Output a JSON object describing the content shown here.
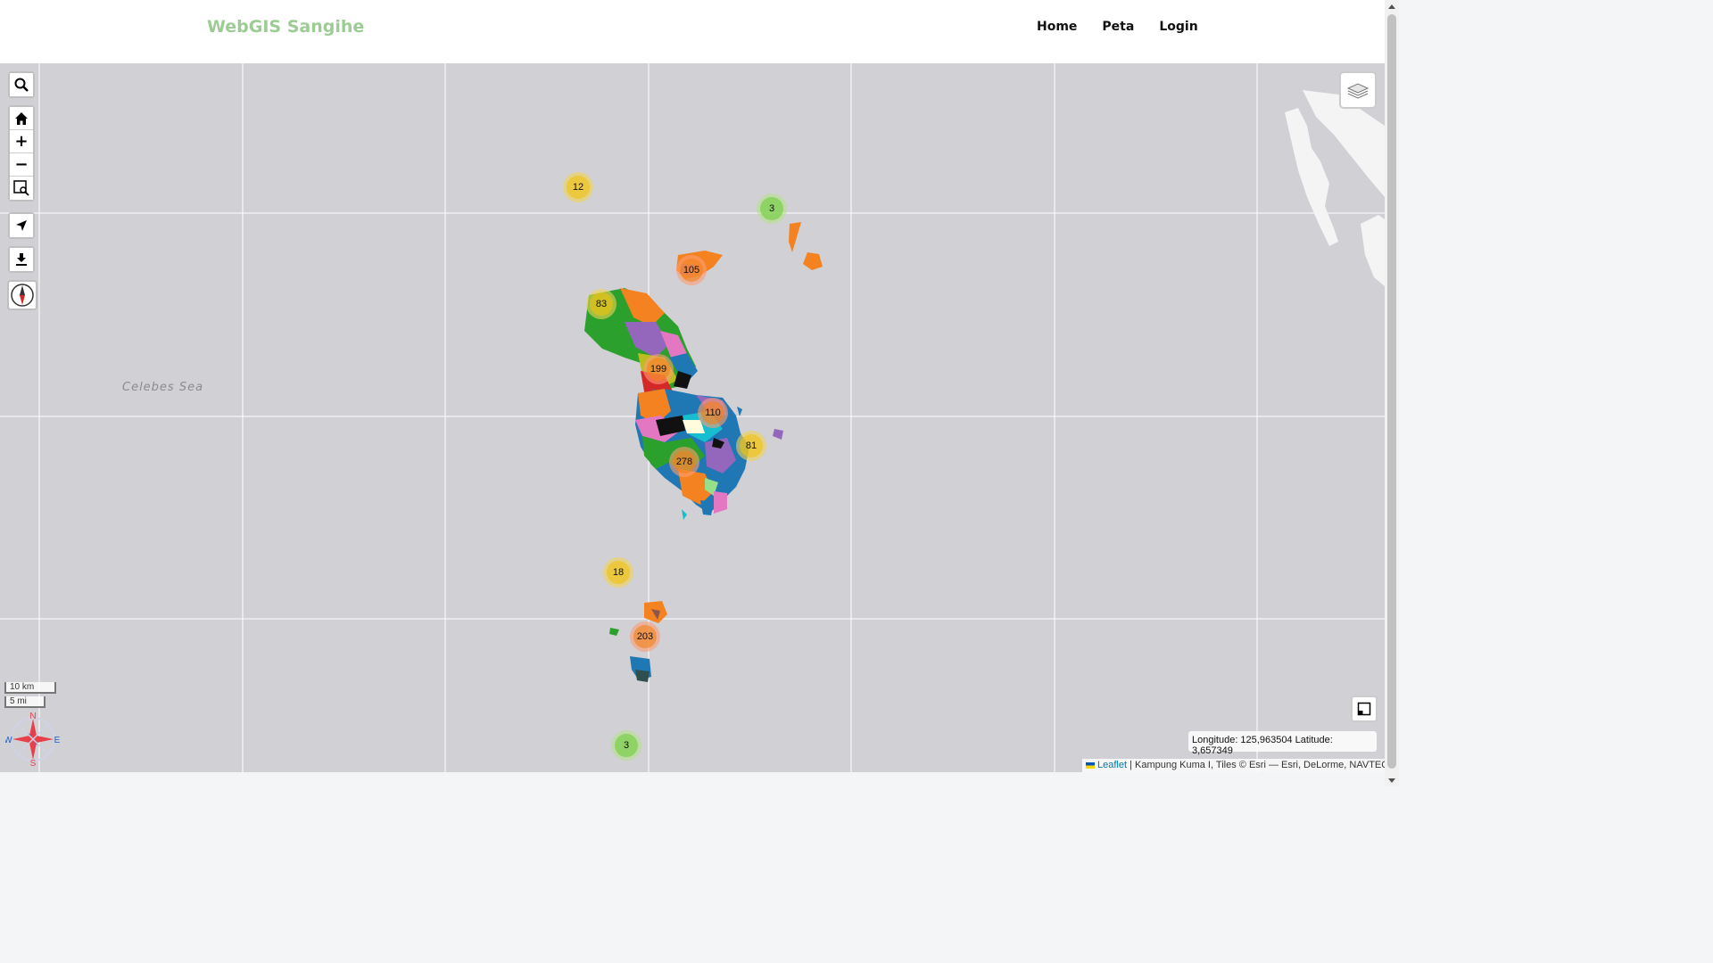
{
  "app": {
    "brand": "WebGIS Sangihe",
    "nav": [
      "Home",
      "Peta",
      "Login"
    ]
  },
  "map": {
    "sea_label": "Celebes Sea",
    "clusters": [
      {
        "count": "12",
        "size": "medium"
      },
      {
        "count": "3",
        "size": "small"
      },
      {
        "count": "105",
        "size": "large"
      },
      {
        "count": "83",
        "size": "medium"
      },
      {
        "count": "199",
        "size": "large"
      },
      {
        "count": "110",
        "size": "large"
      },
      {
        "count": "81",
        "size": "medium"
      },
      {
        "count": "278",
        "size": "large"
      },
      {
        "count": "18",
        "size": "medium"
      },
      {
        "count": "203",
        "size": "large"
      },
      {
        "count": "3",
        "size": "small"
      }
    ],
    "scale": {
      "metric": "10 km",
      "imperial": "5 mi"
    },
    "compass": {
      "n": "N",
      "s": "S",
      "e": "E",
      "w": "W"
    },
    "coords": "Longitude: 125,963504 Latitude: 3,657349",
    "attribution": {
      "leaflet": "Leaflet",
      "text": " | Kampung Kuma I, Tiles © Esri — Esri, DeLorme, NAVTEQ"
    }
  },
  "controls": {
    "left": [
      "search-icon",
      "home-icon",
      "zoom-in",
      "zoom-out",
      "box-zoom-icon",
      "locate-icon",
      "download-icon",
      "compass-icon"
    ],
    "zoom_in_label": "+",
    "zoom_out_label": "−"
  },
  "colors": {
    "brand": "#9ccc94",
    "map_bg": "#d0d0d5",
    "orange": "#f58220",
    "green": "#2ca02c",
    "blue": "#1f77b4"
  }
}
